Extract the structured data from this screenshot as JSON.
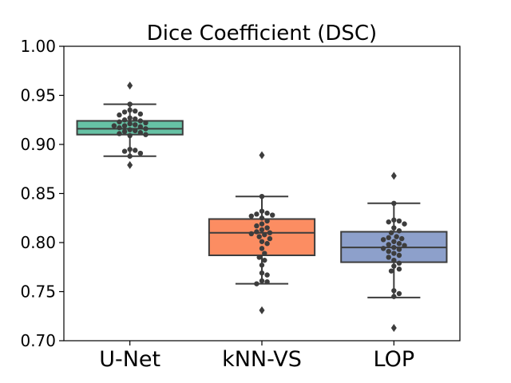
{
  "chart_data": {
    "type": "box",
    "title": "Dice Coefficient (DSC)",
    "xlabel": "",
    "ylabel": "",
    "ylim": [
      0.7,
      1.0
    ],
    "yticks": [
      "0.70",
      "0.75",
      "0.80",
      "0.85",
      "0.90",
      "0.95",
      "1.00"
    ],
    "categories": [
      "U-Net",
      "kNN-VS",
      "LOP"
    ],
    "grid": false,
    "series": [
      {
        "category": "U-Net",
        "color": "#66c2a5",
        "q1": 0.91,
        "median": 0.916,
        "q3": 0.924,
        "whisker_low": 0.888,
        "whisker_high": 0.941,
        "outliers": [
          0.96,
          0.879
        ],
        "points": [
          0.941,
          0.935,
          0.934,
          0.933,
          0.931,
          0.93,
          0.927,
          0.926,
          0.925,
          0.924,
          0.923,
          0.922,
          0.921,
          0.92,
          0.919,
          0.919,
          0.918,
          0.917,
          0.916,
          0.915,
          0.914,
          0.913,
          0.912,
          0.911,
          0.91,
          0.909,
          0.895,
          0.894,
          0.893,
          0.891,
          0.888
        ]
      },
      {
        "category": "kNN-VS",
        "color": "#fc8d62",
        "q1": 0.787,
        "median": 0.81,
        "q3": 0.824,
        "whisker_low": 0.758,
        "whisker_high": 0.847,
        "outliers": [
          0.889,
          0.731
        ],
        "points": [
          0.847,
          0.832,
          0.83,
          0.829,
          0.828,
          0.827,
          0.825,
          0.822,
          0.819,
          0.817,
          0.815,
          0.813,
          0.811,
          0.81,
          0.809,
          0.808,
          0.806,
          0.804,
          0.801,
          0.799,
          0.794,
          0.789,
          0.785,
          0.782,
          0.777,
          0.769,
          0.767,
          0.761,
          0.76,
          0.758
        ]
      },
      {
        "category": "LOP",
        "color": "#8da0cb",
        "q1": 0.78,
        "median": 0.795,
        "q3": 0.811,
        "whisker_low": 0.744,
        "whisker_high": 0.84,
        "outliers": [
          0.868,
          0.713
        ],
        "points": [
          0.84,
          0.823,
          0.822,
          0.821,
          0.819,
          0.815,
          0.812,
          0.81,
          0.806,
          0.805,
          0.804,
          0.803,
          0.801,
          0.799,
          0.798,
          0.797,
          0.795,
          0.794,
          0.793,
          0.791,
          0.789,
          0.787,
          0.785,
          0.782,
          0.779,
          0.776,
          0.773,
          0.771,
          0.751,
          0.748,
          0.745
        ]
      }
    ]
  }
}
